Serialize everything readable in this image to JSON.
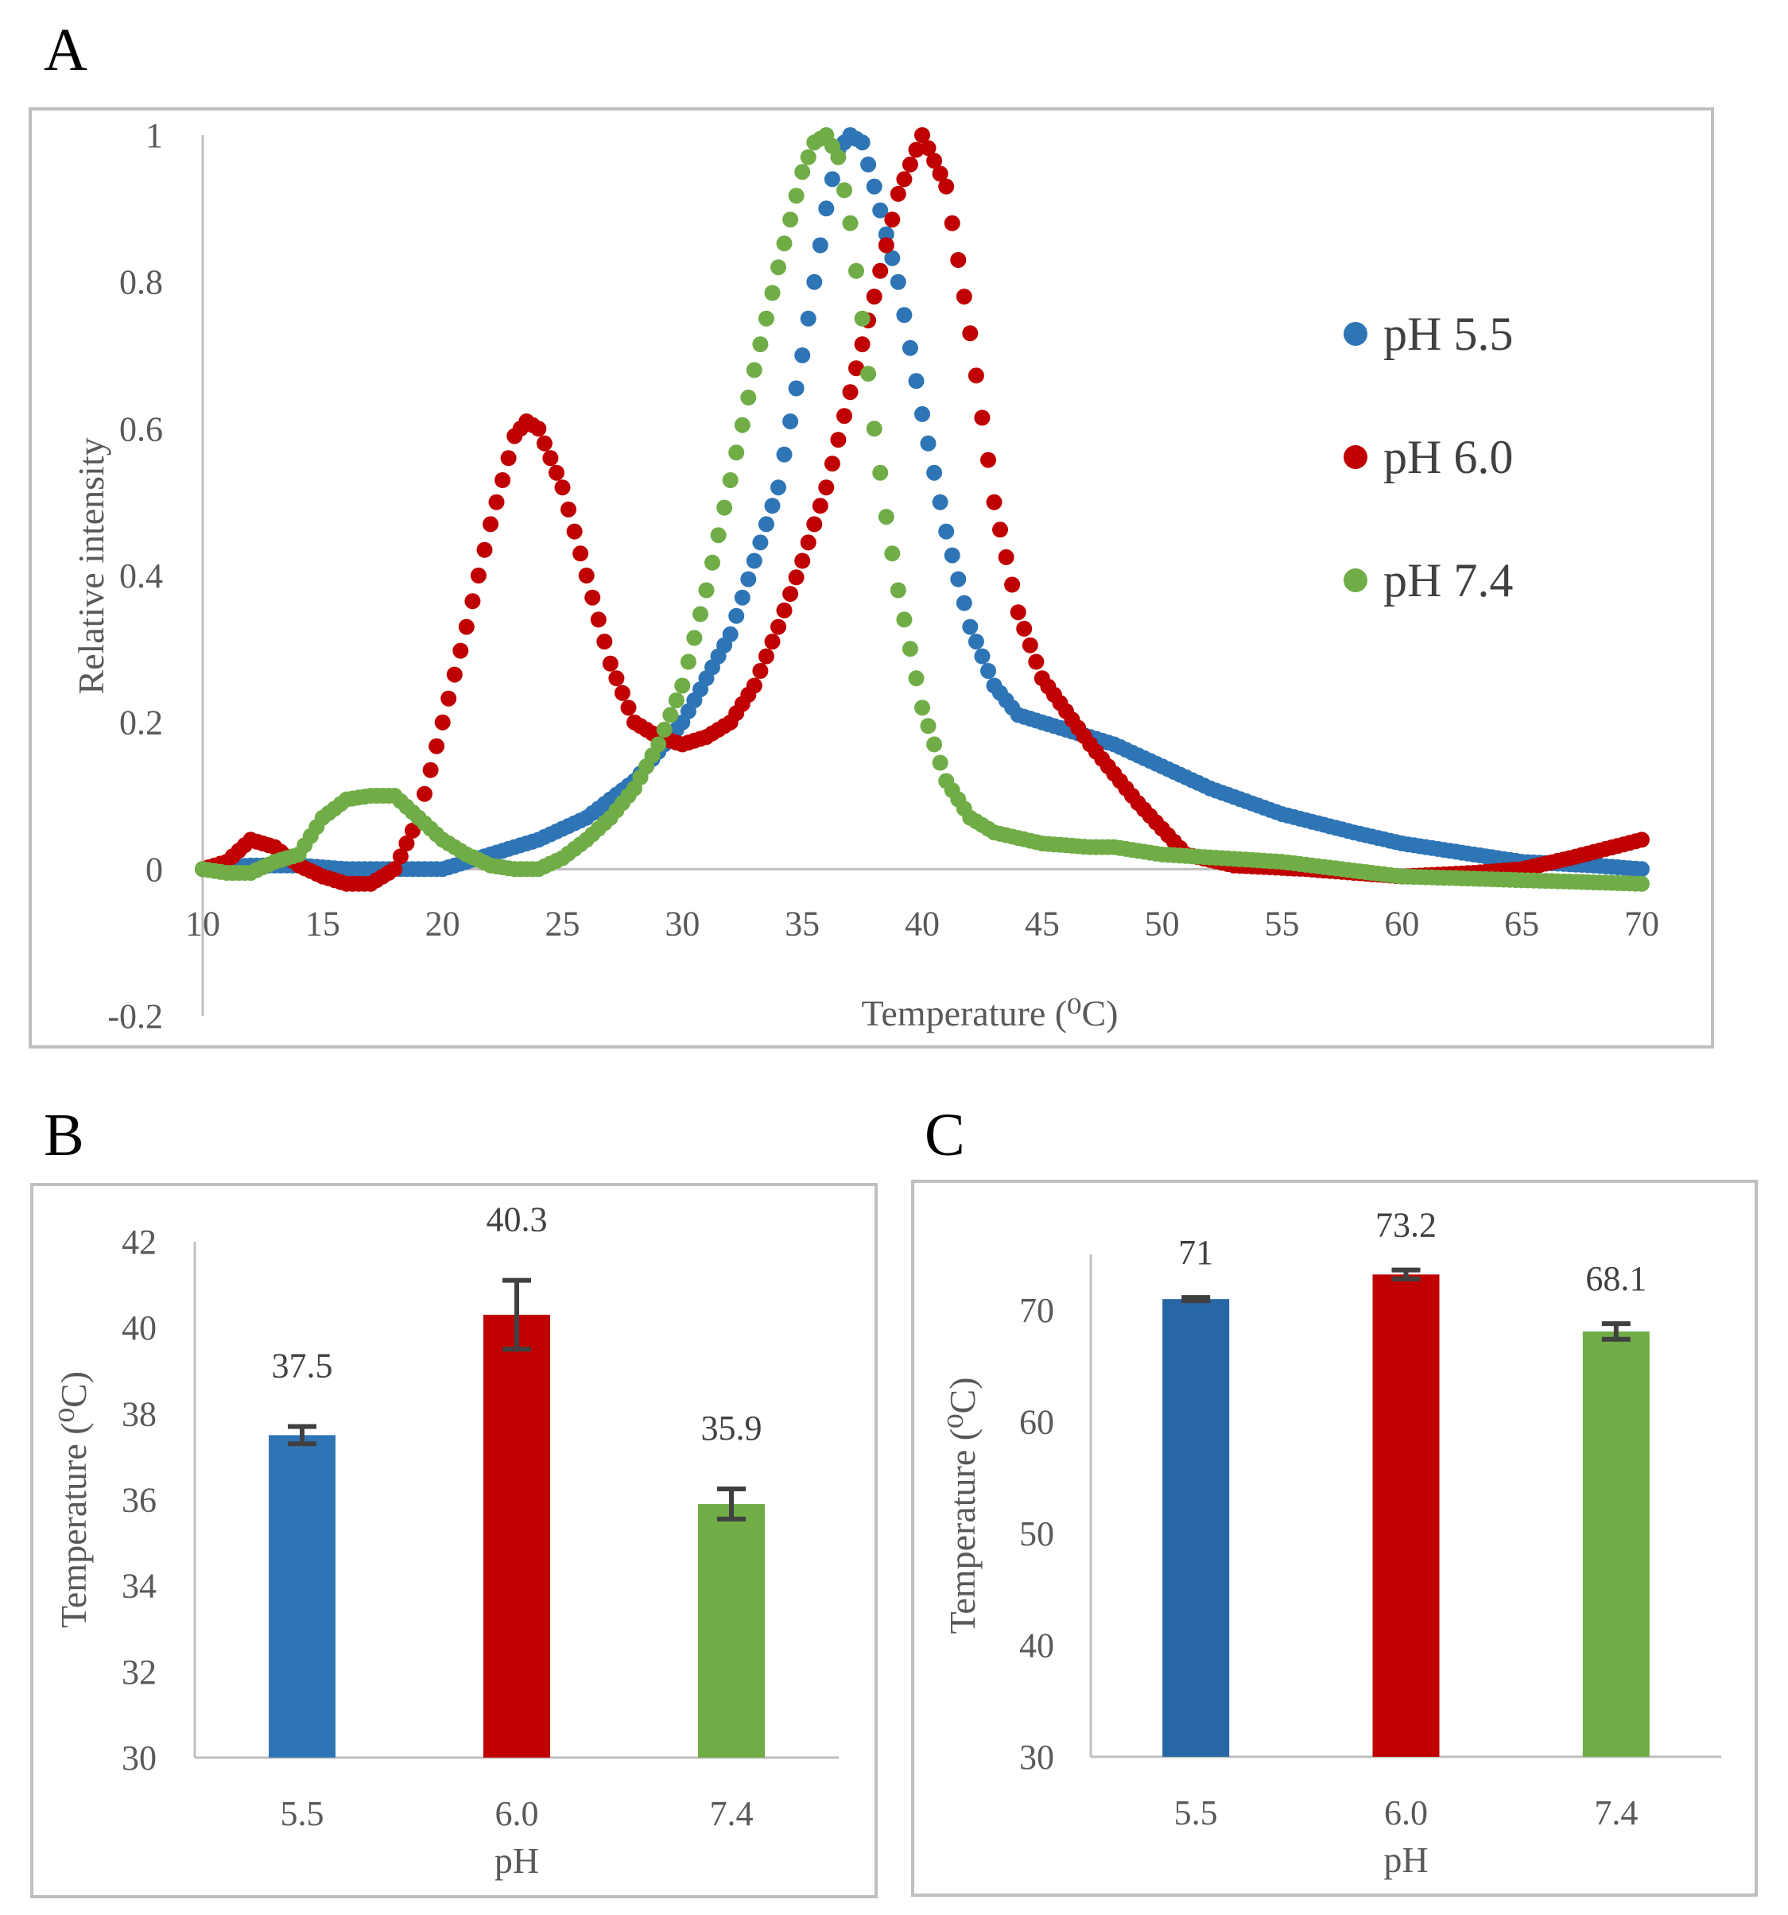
{
  "panels": {
    "a_letter": "A",
    "b_letter": "B",
    "c_letter": "C"
  },
  "colors": {
    "ph55": "#2E75B6",
    "ph60": "#C00000",
    "ph74": "#70AD47",
    "errorbar": "#404040"
  },
  "chart_data": [
    {
      "id": "A",
      "type": "scatter",
      "title": "",
      "xlabel": "Temperature (⁰C)",
      "ylabel": "Relative intensity",
      "xlim": [
        10,
        70
      ],
      "ylim": [
        -0.2,
        1
      ],
      "xticks": [
        "10",
        "15",
        "20",
        "25",
        "30",
        "35",
        "40",
        "45",
        "50",
        "55",
        "60",
        "65",
        "70"
      ],
      "yticks": [
        "-0.2",
        "0",
        "0.2",
        "0.4",
        "0.6",
        "0.8",
        "1"
      ],
      "legend_position": "right",
      "series": [
        {
          "name": "pH 5.5",
          "color": "#2E75B6",
          "x": [
            10,
            12,
            14,
            16,
            18,
            20,
            22,
            24,
            26,
            28,
            30,
            32,
            34,
            35,
            36,
            36.5,
            37,
            37.5,
            38,
            39,
            40,
            41,
            42,
            43,
            44,
            46,
            48,
            50,
            52,
            55,
            58,
            60,
            63,
            65,
            68,
            70
          ],
          "y": [
            0.0,
            0.005,
            0.005,
            0.0,
            0.0,
            0.0,
            0.02,
            0.04,
            0.07,
            0.12,
            0.2,
            0.32,
            0.52,
            0.7,
            0.9,
            0.98,
            1.0,
            0.99,
            0.93,
            0.8,
            0.62,
            0.46,
            0.33,
            0.25,
            0.21,
            0.19,
            0.17,
            0.14,
            0.11,
            0.075,
            0.05,
            0.035,
            0.02,
            0.01,
            0.005,
            0.0
          ]
        },
        {
          "name": "pH 6.0",
          "color": "#C00000",
          "x": [
            10,
            11,
            12,
            13,
            14,
            15,
            16,
            17,
            18,
            19,
            20,
            21,
            22,
            23,
            23.5,
            24,
            25,
            26,
            27,
            28,
            29,
            30,
            31,
            32,
            33,
            34,
            35,
            36,
            37,
            38,
            39,
            40,
            41,
            42,
            43,
            44,
            45,
            47,
            49,
            51,
            53,
            56,
            60,
            63,
            65,
            67,
            70
          ],
          "y": [
            0.0,
            0.01,
            0.04,
            0.03,
            0.005,
            -0.01,
            -0.02,
            -0.02,
            0.0,
            0.07,
            0.2,
            0.33,
            0.47,
            0.59,
            0.61,
            0.6,
            0.52,
            0.4,
            0.28,
            0.2,
            0.18,
            0.17,
            0.18,
            0.2,
            0.25,
            0.33,
            0.42,
            0.52,
            0.65,
            0.78,
            0.92,
            1.0,
            0.93,
            0.73,
            0.5,
            0.35,
            0.26,
            0.17,
            0.09,
            0.02,
            0.005,
            0.0,
            -0.01,
            -0.005,
            0.0,
            0.015,
            0.04
          ]
        },
        {
          "name": "pH 7.4",
          "color": "#70AD47",
          "x": [
            10,
            11,
            12,
            13,
            14,
            15,
            16,
            17,
            18,
            19,
            20,
            21,
            22,
            23,
            24,
            25,
            26,
            27,
            28,
            29,
            30,
            31,
            32,
            33,
            34,
            35,
            35.5,
            36,
            36.5,
            37,
            37.5,
            38,
            38.5,
            39,
            40,
            41,
            42,
            43,
            45,
            47,
            48,
            50,
            55,
            60,
            65,
            70
          ],
          "y": [
            0.0,
            -0.005,
            -0.005,
            0.01,
            0.02,
            0.07,
            0.095,
            0.1,
            0.1,
            0.07,
            0.04,
            0.02,
            0.005,
            0.0,
            0.0,
            0.015,
            0.04,
            0.07,
            0.11,
            0.17,
            0.25,
            0.38,
            0.53,
            0.68,
            0.82,
            0.95,
            0.99,
            1.0,
            0.97,
            0.88,
            0.75,
            0.6,
            0.48,
            0.38,
            0.22,
            0.12,
            0.07,
            0.05,
            0.035,
            0.03,
            0.03,
            0.02,
            0.01,
            -0.01,
            -0.015,
            -0.02
          ]
        }
      ]
    },
    {
      "id": "B",
      "type": "bar",
      "title": "",
      "xlabel": "pH",
      "ylabel": "Temperature (⁰C)",
      "categories": [
        "5.5",
        "6.0",
        "7.4"
      ],
      "values": [
        37.5,
        40.3,
        35.9
      ],
      "value_labels": [
        "37.5",
        "40.3",
        "35.9"
      ],
      "errors": [
        0.2,
        0.8,
        0.35
      ],
      "bar_colors": [
        "#2E75B6",
        "#C00000",
        "#70AD47"
      ],
      "ylim": [
        30,
        42
      ],
      "yticks": [
        "30",
        "32",
        "34",
        "36",
        "38",
        "40",
        "42"
      ]
    },
    {
      "id": "C",
      "type": "bar",
      "title": "",
      "xlabel": "pH",
      "ylabel": "Temperature (⁰C)",
      "categories": [
        "5.5",
        "6.0",
        "7.4"
      ],
      "values": [
        71,
        73.2,
        68.1
      ],
      "value_labels": [
        "71",
        "73.2",
        "68.1"
      ],
      "errors": [
        0.15,
        0.4,
        0.7
      ],
      "bar_colors": [
        "#2767A6",
        "#C00000",
        "#70AD47"
      ],
      "ylim": [
        30,
        75
      ],
      "yticks": [
        "30",
        "40",
        "50",
        "60",
        "70"
      ]
    }
  ]
}
